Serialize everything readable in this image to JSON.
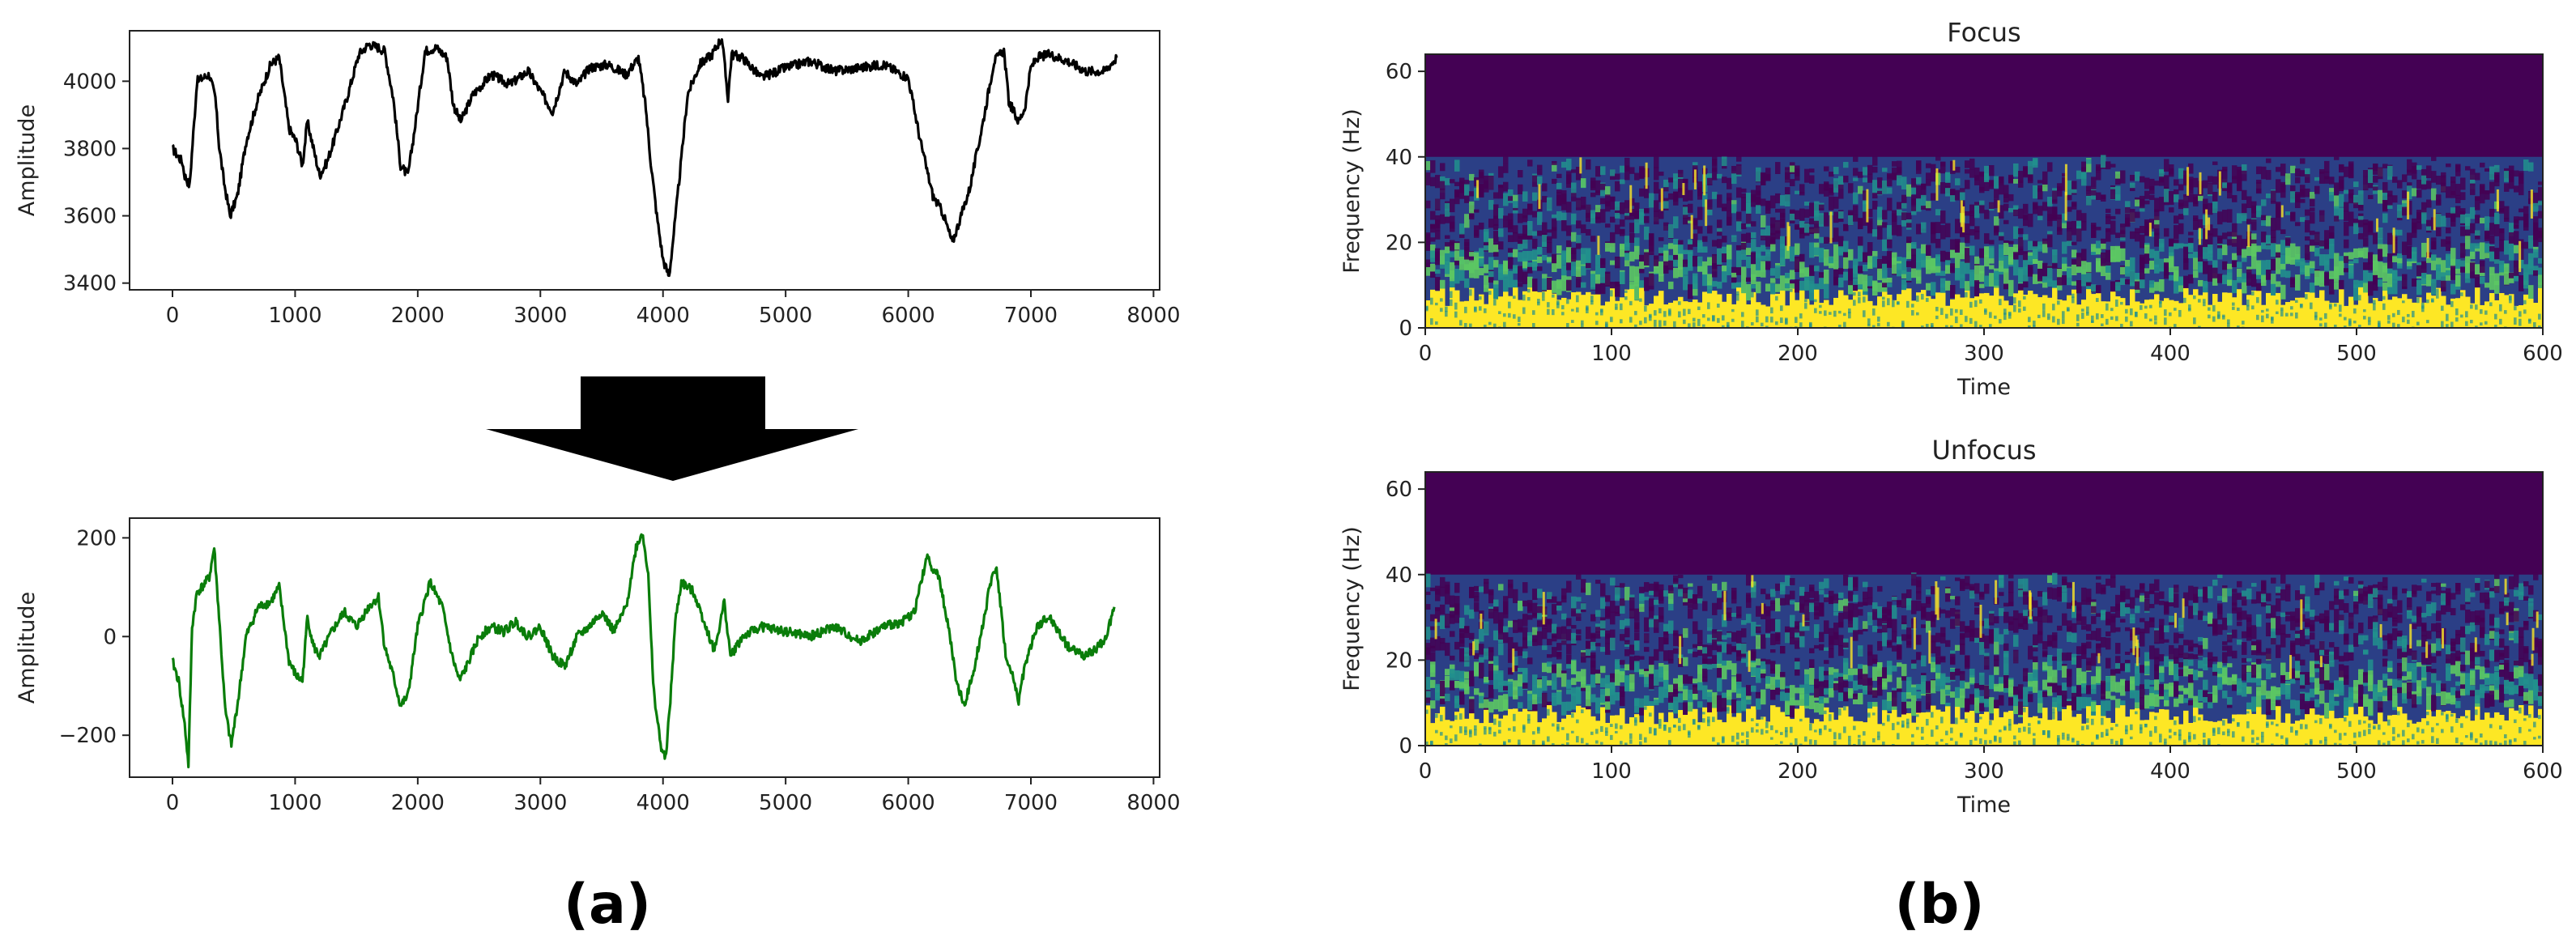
{
  "panel_labels": {
    "a": "(a)",
    "b": "(b)"
  },
  "colors": {
    "raw_line": "#000000",
    "filtered_line": "#0a7d0a",
    "arrow": "#000000",
    "spec_low": "#440154",
    "spec_mid_dark": "#2b3f86",
    "spec_mid": "#21908d",
    "spec_light": "#5cc863",
    "spec_high": "#fde725"
  },
  "icons": {
    "arrow": "down-arrow-icon"
  },
  "chart_data": [
    {
      "id": "raw",
      "type": "line",
      "title": "",
      "xlabel": "",
      "ylabel": "Amplitude",
      "xlim": [
        -350,
        8050
      ],
      "ylim": [
        3380,
        4150
      ],
      "xticks": [
        0,
        1000,
        2000,
        3000,
        4000,
        5000,
        6000,
        7000,
        8000
      ],
      "yticks": [
        3400,
        3600,
        3800,
        4000
      ],
      "x": [
        0,
        80,
        100,
        140,
        200,
        250,
        300,
        350,
        380,
        420,
        470,
        530,
        600,
        700,
        800,
        870,
        950,
        1010,
        1060,
        1100,
        1150,
        1200,
        1260,
        1340,
        1430,
        1520,
        1600,
        1680,
        1730,
        1800,
        1860,
        1920,
        1980,
        2060,
        2150,
        2240,
        2290,
        2350,
        2450,
        2600,
        2750,
        2900,
        3000,
        3100,
        3200,
        3300,
        3400,
        3550,
        3700,
        3800,
        3860,
        3900,
        3950,
        4000,
        4050,
        4100,
        4150,
        4200,
        4300,
        4400,
        4480,
        4530,
        4560,
        4650,
        4800,
        5000,
        5200,
        5400,
        5600,
        5800,
        6000,
        6100,
        6200,
        6280,
        6360,
        6430,
        6500,
        6600,
        6700,
        6780,
        6820,
        6900,
        6950,
        7000,
        7050,
        7150,
        7300,
        7450,
        7600,
        7700
      ],
      "y": [
        3800,
        3760,
        3720,
        3690,
        4000,
        4010,
        4020,
        3950,
        3810,
        3700,
        3600,
        3660,
        3820,
        3950,
        4050,
        4070,
        3860,
        3820,
        3750,
        3880,
        3800,
        3720,
        3760,
        3850,
        3960,
        4080,
        4110,
        4100,
        4090,
        3950,
        3750,
        3720,
        3870,
        4090,
        4100,
        4070,
        3930,
        3880,
        3960,
        4020,
        3990,
        4030,
        3970,
        3910,
        4030,
        3990,
        4040,
        4050,
        4020,
        4070,
        3920,
        3760,
        3600,
        3470,
        3420,
        3590,
        3770,
        3960,
        4050,
        4080,
        4130,
        3950,
        4080,
        4070,
        4010,
        4040,
        4060,
        4030,
        4040,
        4050,
        4010,
        3820,
        3660,
        3610,
        3520,
        3600,
        3680,
        3860,
        4060,
        4090,
        3940,
        3880,
        3920,
        4040,
        4070,
        4080,
        4060,
        4030,
        4030,
        4070
      ]
    },
    {
      "id": "filtered",
      "type": "line",
      "title": "",
      "xlabel": "",
      "ylabel": "Amplitude",
      "xlim": [
        -350,
        8050
      ],
      "ylim": [
        -285,
        240
      ],
      "xticks": [
        0,
        1000,
        2000,
        3000,
        4000,
        5000,
        6000,
        7000,
        8000
      ],
      "yticks": [
        -200,
        0,
        200
      ],
      "x": [
        0,
        50,
        100,
        130,
        160,
        200,
        240,
        300,
        340,
        380,
        430,
        480,
        540,
        600,
        700,
        800,
        870,
        950,
        1010,
        1060,
        1100,
        1150,
        1200,
        1300,
        1400,
        1500,
        1600,
        1680,
        1730,
        1800,
        1860,
        1920,
        2000,
        2100,
        2200,
        2280,
        2340,
        2400,
        2500,
        2600,
        2700,
        2800,
        2900,
        3000,
        3100,
        3200,
        3300,
        3400,
        3500,
        3600,
        3700,
        3780,
        3830,
        3880,
        3920,
        3980,
        4020,
        4060,
        4100,
        4150,
        4250,
        4350,
        4420,
        4500,
        4550,
        4650,
        4800,
        5000,
        5200,
        5400,
        5600,
        5800,
        5950,
        6050,
        6150,
        6250,
        6320,
        6400,
        6460,
        6540,
        6620,
        6680,
        6720,
        6800,
        6850,
        6900,
        6950,
        7050,
        7150,
        7300,
        7450,
        7600,
        7680
      ],
      "y": [
        -50,
        -90,
        -180,
        -260,
        20,
        90,
        100,
        120,
        180,
        40,
        -150,
        -220,
        -120,
        0,
        60,
        70,
        100,
        -50,
        -80,
        -90,
        40,
        -20,
        -40,
        10,
        50,
        20,
        60,
        80,
        -20,
        -80,
        -140,
        -120,
        20,
        110,
        60,
        -40,
        -90,
        -60,
        0,
        20,
        10,
        30,
        0,
        20,
        -40,
        -60,
        0,
        20,
        50,
        10,
        60,
        180,
        210,
        130,
        -100,
        -220,
        -250,
        -130,
        30,
        110,
        90,
        20,
        -30,
        70,
        -40,
        0,
        20,
        10,
        0,
        20,
        -10,
        20,
        30,
        50,
        160,
        120,
        30,
        -100,
        -140,
        -60,
        40,
        120,
        140,
        -50,
        -80,
        -130,
        -60,
        20,
        40,
        -20,
        -40,
        -10,
        60
      ]
    },
    {
      "id": "focus",
      "type": "heatmap",
      "title": "Focus",
      "xlabel": "Time",
      "ylabel": "Frequency (Hz)",
      "xlim": [
        0,
        600
      ],
      "ylim": [
        0,
        64
      ],
      "xticks": [
        0,
        100,
        200,
        300,
        400,
        500,
        600
      ],
      "yticks": [
        0,
        20,
        40,
        60
      ],
      "band_boundaries_hz": [
        40,
        20,
        10,
        5
      ],
      "colormap": "viridis"
    },
    {
      "id": "unfocus",
      "type": "heatmap",
      "title": "Unfocus",
      "xlabel": "Time",
      "ylabel": "Frequency (Hz)",
      "xlim": [
        0,
        600
      ],
      "ylim": [
        0,
        64
      ],
      "xticks": [
        0,
        100,
        200,
        300,
        400,
        500,
        600
      ],
      "yticks": [
        0,
        20,
        40,
        60
      ],
      "band_boundaries_hz": [
        40,
        20,
        10,
        5
      ],
      "colormap": "viridis"
    }
  ]
}
